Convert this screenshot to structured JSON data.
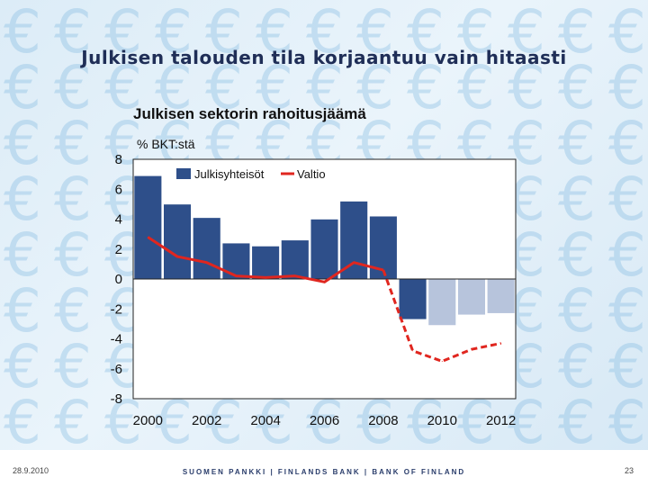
{
  "slide": {
    "title": "Julkisen talouden tila korjaantuu vain hitaasti",
    "footer_date": "28.9.2010",
    "footer_center": "SUOMEN PANKKI | FINLANDS BANK | BANK OF FINLAND",
    "page_number": "23",
    "background_glyph": "€"
  },
  "colors": {
    "bar_actual": "#2e4f8a",
    "bar_forecast": "#b7c4dc",
    "line": "#e0261f",
    "pattern": "#7db6df",
    "plot_bg": "#ffffff",
    "axis": "#222222"
  },
  "chart_data": {
    "type": "bar",
    "title": "Julkisen sektorin rahoitusjäämä",
    "ylabel": "% BKT:stä",
    "xlabel": "",
    "ylim": [
      -8,
      8
    ],
    "yticks": [
      "8",
      "6",
      "4",
      "2",
      "0",
      "-2",
      "-4",
      "-6",
      "-8"
    ],
    "xticks": [
      "2000",
      "2002",
      "2004",
      "2006",
      "2008",
      "2010",
      "2012"
    ],
    "categories": [
      2000,
      2001,
      2002,
      2003,
      2004,
      2005,
      2006,
      2007,
      2008,
      2009,
      2010,
      2011,
      2012
    ],
    "legend": [
      "Julkisyhteisöt",
      "Valtio"
    ],
    "series": [
      {
        "name": "Julkisyhteisöt",
        "kind": "bar",
        "values": [
          6.9,
          5.0,
          4.1,
          2.4,
          2.2,
          2.6,
          4.0,
          5.2,
          4.2,
          -2.7,
          -3.1,
          -2.4,
          -2.3
        ],
        "forecast_from": 2010
      },
      {
        "name": "Valtio",
        "kind": "line",
        "values": [
          2.8,
          1.5,
          1.1,
          0.2,
          0.1,
          0.2,
          -0.2,
          1.1,
          0.6,
          -4.8,
          -5.5,
          -4.7,
          -4.3
        ],
        "forecast_from": 2009
      }
    ]
  }
}
